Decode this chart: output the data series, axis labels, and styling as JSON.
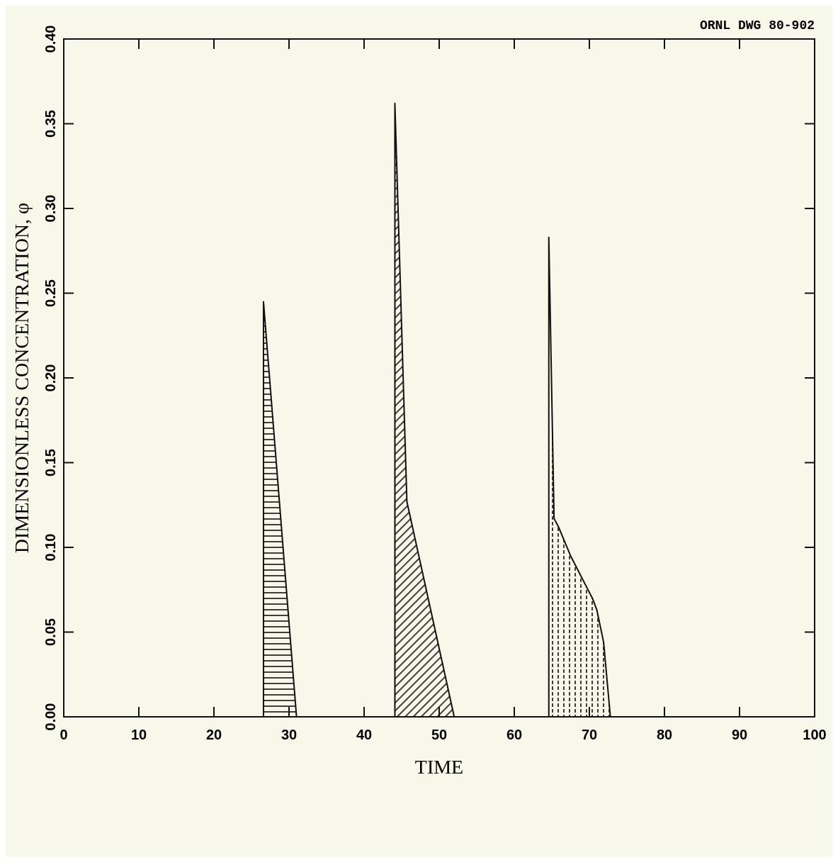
{
  "chart_data": {
    "type": "area",
    "xlabel": "TIME",
    "ylabel": "DIMENSIONLESS CONCENTRATION, φ",
    "annotations": [
      "ORNL DWG 80-902"
    ],
    "xlim": [
      0,
      100
    ],
    "xticks": [
      0,
      10,
      20,
      30,
      40,
      50,
      60,
      70,
      80,
      90,
      100
    ],
    "ylim": [
      0,
      0.4
    ],
    "yticks": [
      {
        "value": 0,
        "label": "0.00"
      },
      {
        "value": 0.05,
        "label": "0.05"
      },
      {
        "value": 0.1,
        "label": "0.10"
      },
      {
        "value": 0.15,
        "label": "0.15"
      },
      {
        "value": 0.2,
        "label": "0.20"
      },
      {
        "value": 0.25,
        "label": "0.25"
      },
      {
        "value": 0.3,
        "label": "0.30"
      },
      {
        "value": 0.35,
        "label": "0.35"
      },
      {
        "value": 0.4,
        "label": "0.40"
      }
    ],
    "grid": false,
    "series": [
      {
        "color": "#111111",
        "x": [
          26.6,
          26.6,
          31
        ],
        "values": [
          0,
          0.245,
          0
        ]
      },
      {
        "color": "#111111",
        "x": [
          44.1,
          44.1,
          45.7,
          52
        ],
        "values": [
          0,
          0.362,
          0.127,
          0
        ]
      },
      {
        "color": "#111111",
        "x": [
          64.6,
          64.6,
          65.3,
          65.9,
          67.5,
          69.7,
          70.4,
          71,
          71.9,
          72.8
        ],
        "values": [
          0,
          0.283,
          0.117,
          0.112,
          0.095,
          0.076,
          0.07,
          0.063,
          0.044,
          0
        ]
      }
    ]
  }
}
